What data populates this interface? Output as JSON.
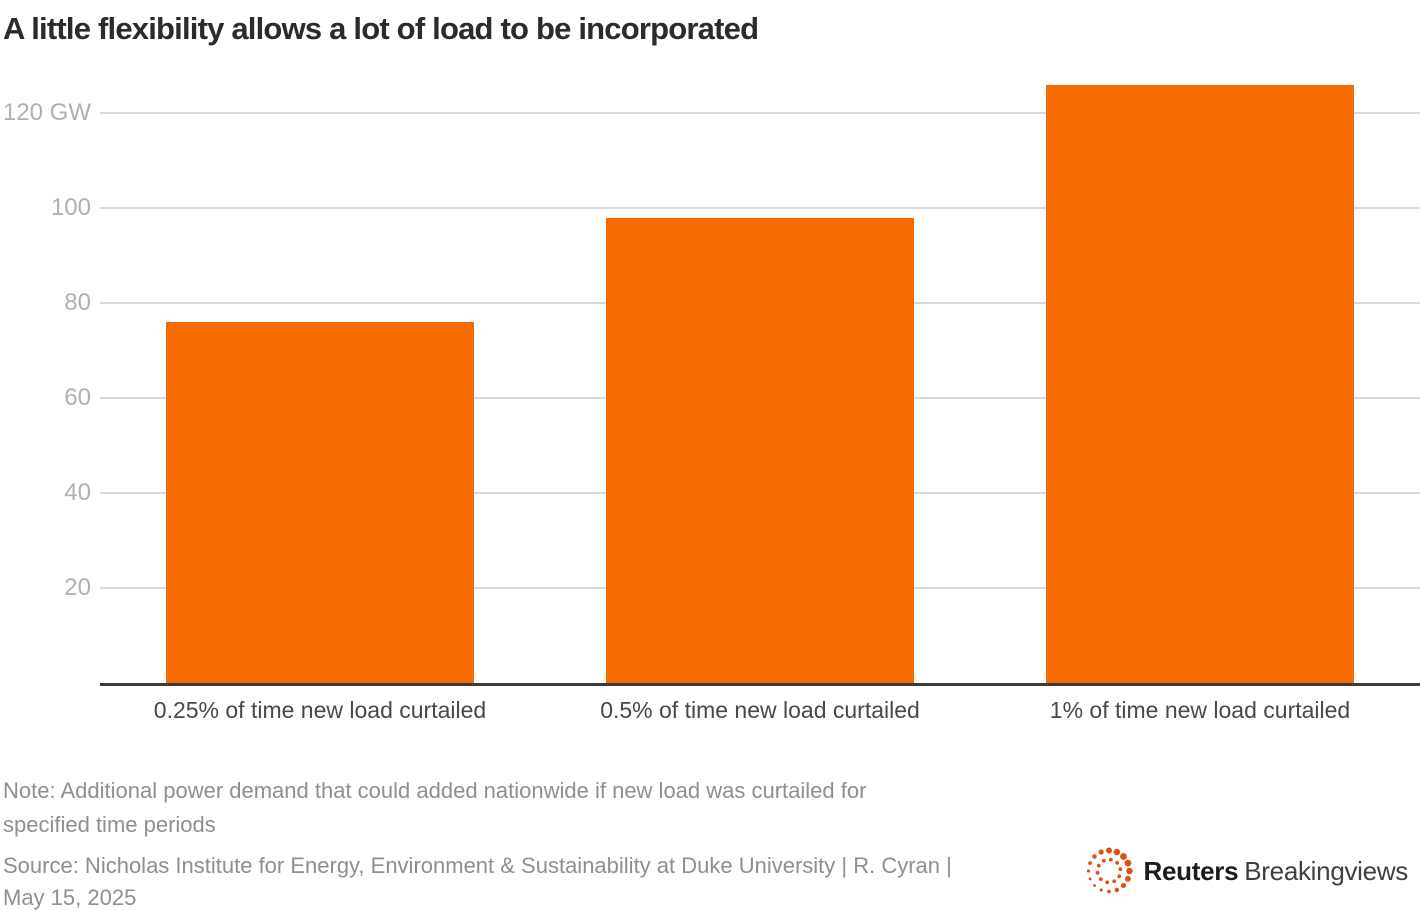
{
  "title": "A little flexibility allows a lot of load to be incorporated",
  "chart_data": {
    "type": "bar",
    "categories": [
      "0.25% of time new load curtailed",
      "0.5% of time new load curtailed",
      "1% of time new load curtailed"
    ],
    "values": [
      76,
      98,
      126
    ],
    "unit": "GW",
    "title": "A little flexibility allows a lot of load to be incorporated",
    "xlabel": "",
    "ylabel": "GW",
    "ylim": [
      0,
      128
    ],
    "y_ticks": [
      20,
      40,
      60,
      80,
      100,
      120
    ],
    "y_tick_labels": [
      "20",
      "40",
      "60",
      "80",
      "100",
      "120 GW"
    ],
    "grid": true,
    "legend": "none",
    "bar_color": "#f66b00",
    "gridline_color": "#d9d9d9",
    "axis_color": "#3a3a3a",
    "tick_label_color": "#b0b0b0"
  },
  "note": {
    "line1": "Note: Additional power demand that could added nationwide if new load was curtailed for",
    "line2": "specified time periods"
  },
  "source": {
    "line1": "Source: Nicholas Institute for Energy, Environment & Sustainability at Duke University | R. Cyran |",
    "line2": "May 15, 2025"
  },
  "footer_logo": {
    "brand_bold": "Reuters",
    "brand_regular": "Breakingviews",
    "icon": "reuters-dotted-circle-icon",
    "dot_color": "#e44d12"
  }
}
